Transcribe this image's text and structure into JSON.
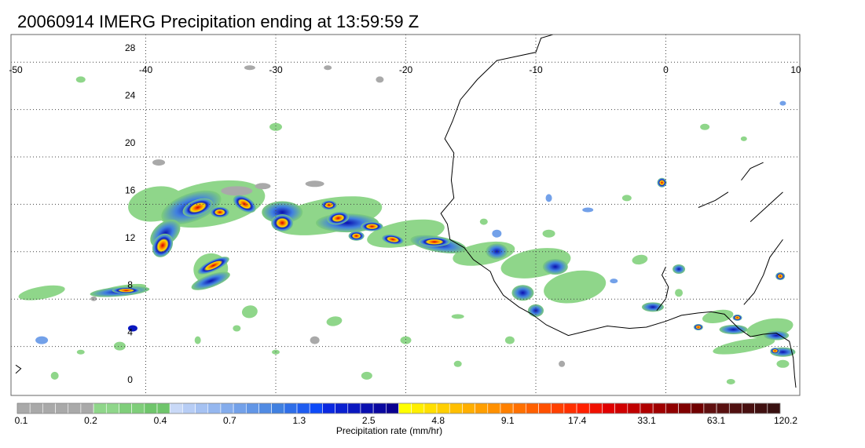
{
  "title": "20060914 IMERG Precipitation ending at 13:59:59 Z",
  "map": {
    "lon_ticks": [
      -50,
      -40,
      -30,
      -20,
      -10,
      0,
      10
    ],
    "lat_ticks": [
      28,
      24,
      20,
      16,
      12,
      8,
      4,
      0
    ],
    "lon_range": [
      -50,
      10
    ],
    "lat_range": [
      -0.5,
      30.5
    ],
    "grid": "dotted"
  },
  "colorbar": {
    "title": "Precipitation rate (mm/hr)",
    "tick_labels": [
      "0.1",
      "0.2",
      "0.4",
      "0.7",
      "1.3",
      "2.5",
      "4.8",
      "9.1",
      "17.4",
      "33.1",
      "63.1",
      "120.2"
    ],
    "colors": [
      "#a9a9a9",
      "#a9a9a9",
      "#a9a9a9",
      "#a9a9a9",
      "#a9a9a9",
      "#a9a9a9",
      "#8fd68a",
      "#8fd68a",
      "#7fce7a",
      "#7fce7a",
      "#6fc56b",
      "#6fc56b",
      "#c9d9f7",
      "#b7cdf5",
      "#a6c2f2",
      "#95b7ef",
      "#84acec",
      "#73a1e9",
      "#6296e6",
      "#518be3",
      "#4080e0",
      "#2f6ee8",
      "#1e5cf0",
      "#0d4af8",
      "#0a28e0",
      "#0a20d0",
      "#0a18c0",
      "#0a10b0",
      "#0a08a0",
      "#0a0090",
      "#ffff00",
      "#ffef00",
      "#ffdf00",
      "#ffcf00",
      "#ffbf00",
      "#ffaf00",
      "#ff9f00",
      "#ff9000",
      "#ff8000",
      "#ff7000",
      "#ff6000",
      "#ff5000",
      "#ff4000",
      "#ff3000",
      "#ff2000",
      "#f01000",
      "#e00000",
      "#d00000",
      "#c00000",
      "#b00000",
      "#a00000",
      "#900000",
      "#800000",
      "#700000",
      "#601010",
      "#581010",
      "#501010",
      "#481010",
      "#401010",
      "#381010"
    ]
  },
  "colors": {
    "coastline": "#000000",
    "grid": "#555555"
  }
}
